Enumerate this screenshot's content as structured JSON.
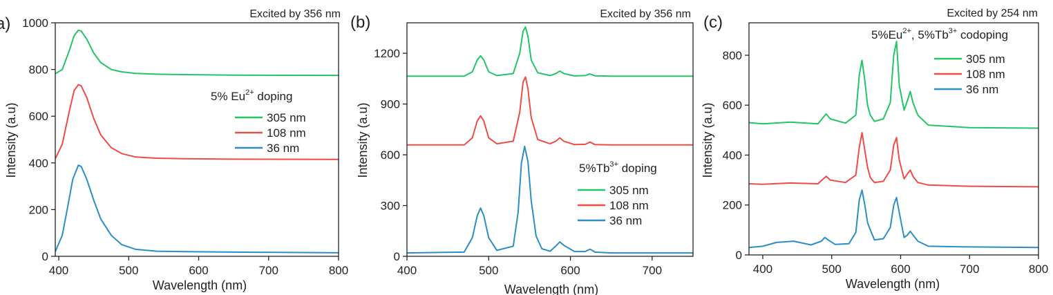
{
  "colors": {
    "305 nm": "#22c563",
    "108 nm": "#ef4b45",
    "36 nm": "#2b8dc6"
  },
  "chart_data": [
    {
      "type": "line",
      "panel_label": "(a)",
      "corner_label": "Excited by 356 nm",
      "legend_title": "5% Eu",
      "legend_title_sup": "2+",
      "legend_title_suffix": " doping",
      "legend_position": "middle-right",
      "xlabel": "Wavelength (nm)",
      "ylabel": "Intensity (a.u)",
      "xlim": [
        395,
        800
      ],
      "ylim": [
        0,
        1000
      ],
      "xticks": [
        400,
        500,
        600,
        700,
        800
      ],
      "yticks": [
        0,
        200,
        400,
        600,
        800,
        1000
      ],
      "series": [
        {
          "name": "305 nm",
          "color": "#22c563",
          "x": [
            395,
            405,
            415,
            422,
            428,
            432,
            440,
            450,
            460,
            475,
            490,
            510,
            540,
            580,
            650,
            800
          ],
          "y": [
            782,
            800,
            880,
            945,
            968,
            965,
            930,
            870,
            830,
            800,
            790,
            783,
            780,
            778,
            776,
            775
          ]
        },
        {
          "name": "108 nm",
          "color": "#ef4b45",
          "x": [
            395,
            405,
            415,
            422,
            428,
            432,
            440,
            450,
            460,
            475,
            490,
            510,
            540,
            580,
            650,
            800
          ],
          "y": [
            418,
            480,
            620,
            710,
            735,
            730,
            680,
            590,
            520,
            465,
            440,
            425,
            420,
            418,
            416,
            415
          ]
        },
        {
          "name": "36 nm",
          "color": "#2b8dc6",
          "x": [
            395,
            405,
            412,
            420,
            428,
            432,
            440,
            450,
            460,
            475,
            490,
            510,
            540,
            580,
            650,
            800
          ],
          "y": [
            20,
            90,
            200,
            330,
            390,
            385,
            330,
            240,
            160,
            90,
            50,
            30,
            22,
            20,
            18,
            15
          ]
        }
      ]
    },
    {
      "type": "line",
      "panel_label": "(b)",
      "corner_label": "Excited by 356 nm",
      "legend_title": "5%Tb",
      "legend_title_sup": "3+",
      "legend_title_suffix": " doping",
      "legend_position": "lower-right",
      "xlabel": "Wavelength (nm)",
      "ylabel": "Intensity (a.u)",
      "xlim": [
        400,
        750
      ],
      "ylim": [
        0,
        1380
      ],
      "xticks": [
        400,
        500,
        600,
        700
      ],
      "yticks": [
        0,
        300,
        600,
        900,
        1200
      ],
      "series": [
        {
          "name": "305 nm",
          "color": "#22c563",
          "x": [
            400,
            470,
            480,
            486,
            490,
            494,
            500,
            510,
            530,
            538,
            542,
            545,
            548,
            552,
            560,
            575,
            582,
            587,
            592,
            605,
            618,
            624,
            630,
            650,
            750
          ],
          "y": [
            1065,
            1065,
            1090,
            1160,
            1185,
            1160,
            1090,
            1068,
            1080,
            1200,
            1330,
            1355,
            1300,
            1160,
            1085,
            1068,
            1080,
            1095,
            1080,
            1066,
            1068,
            1078,
            1067,
            1065,
            1065
          ]
        },
        {
          "name": "108 nm",
          "color": "#ef4b45",
          "x": [
            400,
            470,
            480,
            486,
            490,
            494,
            500,
            510,
            530,
            538,
            542,
            545,
            548,
            552,
            560,
            575,
            582,
            587,
            592,
            605,
            618,
            624,
            630,
            650,
            750
          ],
          "y": [
            658,
            658,
            700,
            800,
            830,
            800,
            700,
            665,
            680,
            850,
            1030,
            1060,
            990,
            820,
            690,
            665,
            680,
            700,
            680,
            660,
            662,
            675,
            660,
            658,
            658
          ]
        },
        {
          "name": "36 nm",
          "color": "#2b8dc6",
          "x": [
            400,
            470,
            480,
            486,
            490,
            494,
            500,
            510,
            530,
            536,
            540,
            544,
            548,
            552,
            558,
            565,
            575,
            582,
            587,
            592,
            605,
            618,
            624,
            630,
            650,
            750
          ],
          "y": [
            20,
            25,
            110,
            240,
            285,
            240,
            110,
            35,
            60,
            260,
            550,
            650,
            560,
            330,
            120,
            45,
            30,
            60,
            85,
            65,
            28,
            28,
            42,
            25,
            20,
            20
          ]
        }
      ]
    },
    {
      "type": "line",
      "panel_label": "(c)",
      "corner_label": "Excited by 254 nm",
      "legend_title": "5%Eu",
      "legend_title_sup": "2+",
      "legend_title_mid": ", 5%Tb",
      "legend_title_sup2": "3+",
      "legend_title_suffix": " codoping",
      "legend_position": "top-right",
      "xlabel": "Wavelength (nm)",
      "ylabel": "Intensity (a.u)",
      "xlim": [
        380,
        800
      ],
      "ylim": [
        0,
        930
      ],
      "xticks": [
        400,
        500,
        600,
        700,
        800
      ],
      "yticks": [
        0,
        200,
        400,
        600,
        800
      ],
      "series": [
        {
          "name": "305 nm",
          "color": "#22c563",
          "x": [
            380,
            400,
            440,
            480,
            488,
            492,
            498,
            520,
            535,
            540,
            544,
            548,
            552,
            556,
            562,
            575,
            585,
            590,
            594,
            598,
            605,
            610,
            614,
            618,
            625,
            640,
            700,
            800
          ],
          "y": [
            530,
            525,
            532,
            525,
            552,
            565,
            545,
            528,
            560,
            720,
            780,
            700,
            600,
            560,
            535,
            545,
            610,
            800,
            855,
            680,
            580,
            620,
            655,
            610,
            560,
            520,
            510,
            508
          ]
        },
        {
          "name": "108 nm",
          "color": "#ef4b45",
          "x": [
            380,
            400,
            440,
            480,
            488,
            492,
            498,
            520,
            535,
            540,
            544,
            548,
            552,
            556,
            562,
            575,
            585,
            590,
            594,
            598,
            605,
            610,
            614,
            618,
            625,
            640,
            700,
            800
          ],
          "y": [
            285,
            283,
            288,
            285,
            305,
            315,
            300,
            290,
            320,
            430,
            490,
            420,
            350,
            310,
            290,
            295,
            340,
            440,
            470,
            380,
            305,
            325,
            340,
            315,
            290,
            280,
            275,
            273
          ]
        },
        {
          "name": "36 nm",
          "color": "#2b8dc6",
          "x": [
            380,
            400,
            420,
            445,
            470,
            485,
            490,
            495,
            505,
            525,
            535,
            540,
            544,
            548,
            552,
            556,
            562,
            575,
            585,
            590,
            594,
            598,
            605,
            610,
            614,
            618,
            625,
            640,
            700,
            800
          ],
          "y": [
            30,
            35,
            50,
            55,
            40,
            55,
            70,
            60,
            42,
            45,
            90,
            220,
            260,
            200,
            130,
            100,
            60,
            65,
            110,
            200,
            230,
            170,
            70,
            80,
            95,
            80,
            55,
            35,
            32,
            30
          ]
        }
      ]
    }
  ]
}
